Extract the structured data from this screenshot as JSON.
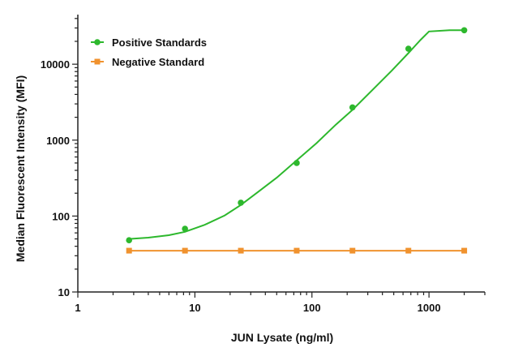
{
  "chart_data": {
    "type": "scatter",
    "title": "",
    "xlabel": "JUN Lysate (ng/ml)",
    "ylabel": "Median  Fluorescent Intensity  (MFI)",
    "x_scale": "log",
    "y_scale": "log",
    "xlim": [
      1,
      3000
    ],
    "ylim": [
      10,
      45000
    ],
    "x_ticks": [
      1,
      10,
      100,
      1000
    ],
    "x_tick_labels": [
      "1",
      "10",
      "100",
      "1000"
    ],
    "y_ticks": [
      10,
      100,
      1000,
      10000
    ],
    "y_tick_labels": [
      "10",
      "100",
      "1000",
      "10000"
    ],
    "grid": false,
    "legend_position": "top-left",
    "series": [
      {
        "name": "Positive Standards",
        "color": "#2db82d",
        "marker": "circle",
        "x": [
          2.74,
          8.23,
          24.7,
          74.1,
          222,
          667,
          2000
        ],
        "y": [
          48,
          68,
          150,
          500,
          2700,
          16000,
          28000
        ],
        "fit_curve": {
          "x": [
            2.74,
            4,
            6,
            8.23,
            12,
            18,
            24.7,
            35,
            50,
            74.1,
            110,
            160,
            222,
            330,
            480,
            667,
            850,
            1000,
            1500,
            2000
          ],
          "y": [
            50,
            52,
            56,
            62,
            76,
            102,
            140,
            210,
            320,
            540,
            920,
            1600,
            2500,
            4600,
            8200,
            14000,
            21000,
            27000,
            28000,
            28000
          ]
        }
      },
      {
        "name": "Negative Standard",
        "color": "#f0922e",
        "marker": "square",
        "x": [
          2.74,
          8.23,
          24.7,
          74.1,
          222,
          667,
          2000
        ],
        "y": [
          35,
          35,
          35,
          35,
          35,
          35,
          35
        ]
      }
    ]
  }
}
